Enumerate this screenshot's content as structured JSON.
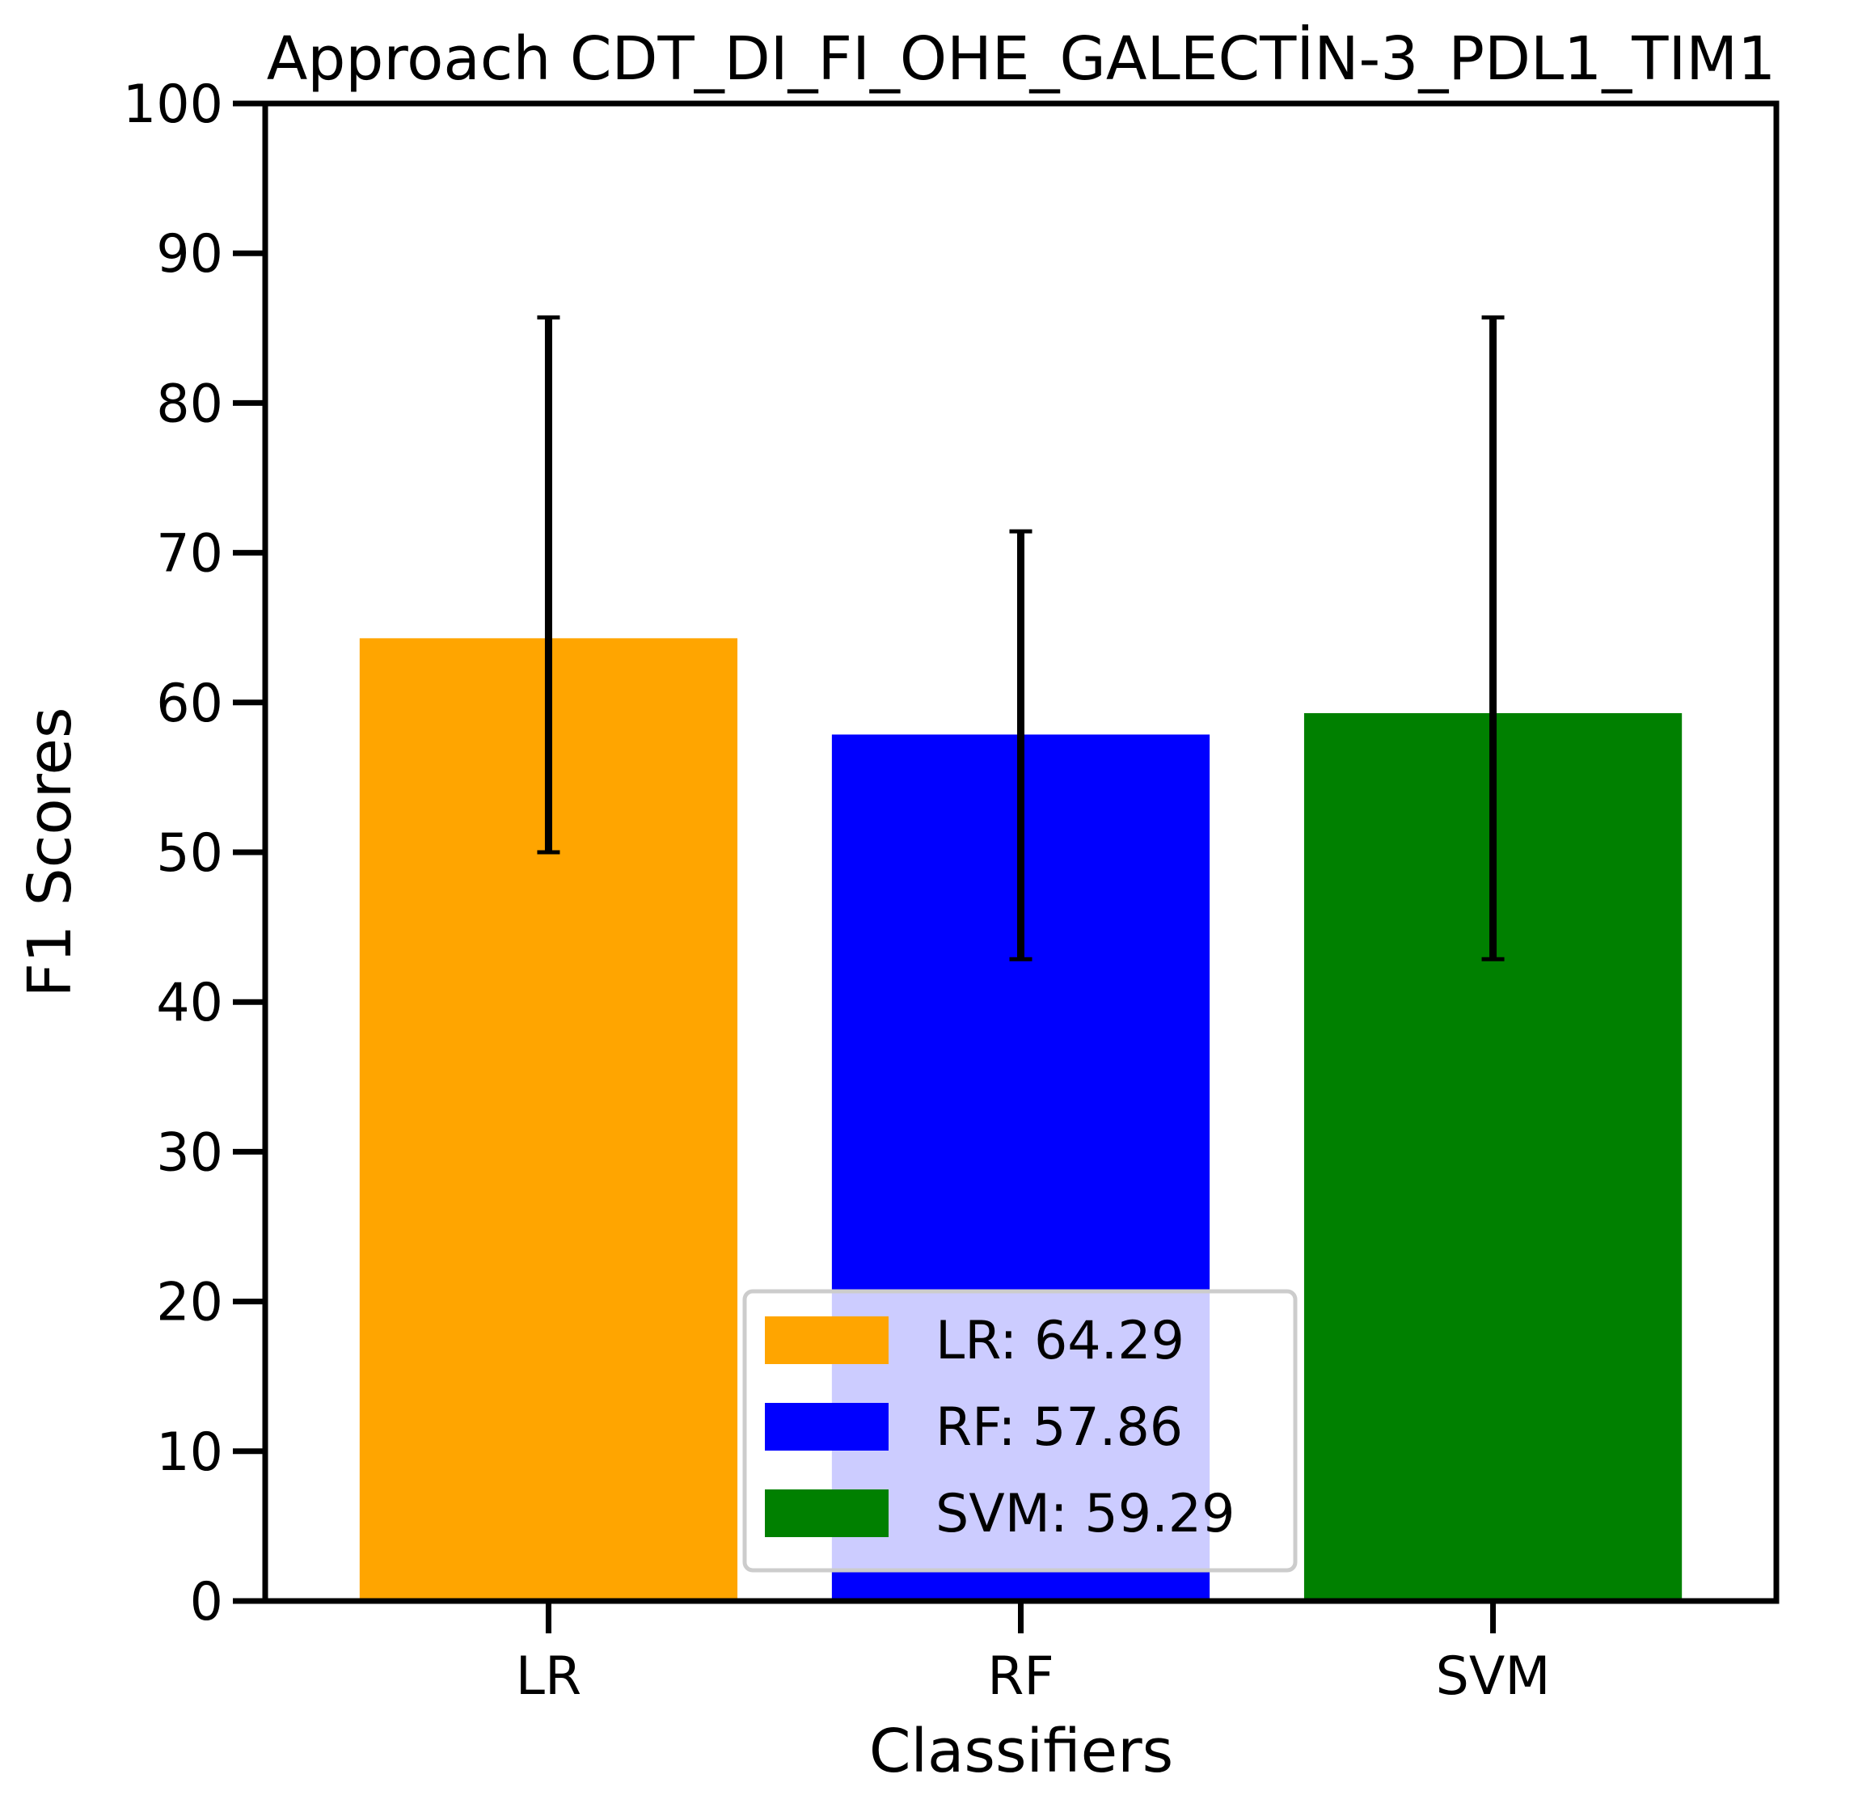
{
  "chart_data": {
    "type": "bar",
    "title": "Approach CDT_DI_FI_OHE_GALECTİN-3_PDL1_TIM1",
    "xlabel": "Classifiers",
    "ylabel": "F1 Scores",
    "ylim": [
      0,
      100
    ],
    "yticks": [
      "0",
      "10",
      "20",
      "30",
      "40",
      "50",
      "60",
      "70",
      "80",
      "90",
      "100"
    ],
    "categories": [
      "LR",
      "RF",
      "SVM"
    ],
    "values": [
      64.29,
      57.86,
      59.29
    ],
    "error_low": [
      50.0,
      42.86,
      42.86
    ],
    "error_high": [
      85.71,
      71.43,
      85.71
    ],
    "colors": [
      "#ffa500",
      "#0000ff",
      "#008000"
    ],
    "grid": false,
    "legend": {
      "placement": "lower-center",
      "entries": [
        "LR: 64.29",
        "RF: 57.86",
        "SVM: 59.29"
      ]
    }
  }
}
